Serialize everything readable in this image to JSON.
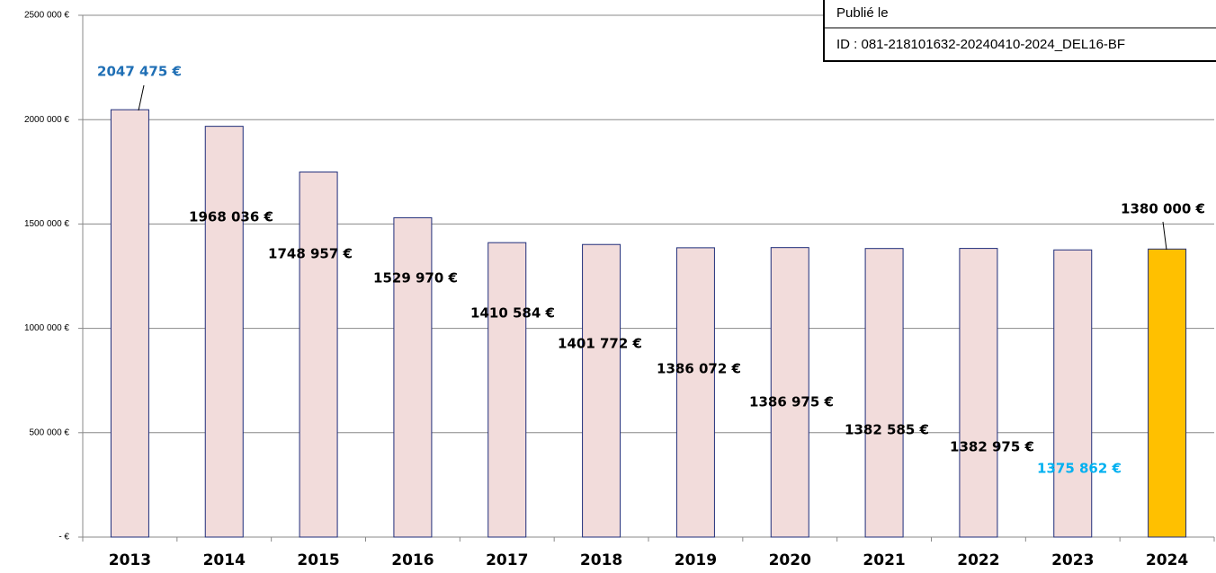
{
  "chart_data": {
    "type": "bar",
    "categories": [
      "2013",
      "2014",
      "2015",
      "2016",
      "2017",
      "2018",
      "2019",
      "2020",
      "2021",
      "2022",
      "2023",
      "2024"
    ],
    "values": [
      2047475,
      1968036,
      1748957,
      1529970,
      1410584,
      1401772,
      1386072,
      1386975,
      1382585,
      1382975,
      1375862,
      1380000
    ],
    "value_labels": [
      "2047 475 €",
      "1968 036 €",
      "1748 957 €",
      "1529 970 €",
      "1410 584 €",
      "1401 772 €",
      "1386 072 €",
      "1386 975 €",
      "1382 585 €",
      "1382 975 €",
      "1375 862 €",
      "1380 000 €"
    ],
    "colors": [
      "#f2dcdb",
      "#f2dcdb",
      "#f2dcdb",
      "#f2dcdb",
      "#f2dcdb",
      "#f2dcdb",
      "#f2dcdb",
      "#f2dcdb",
      "#f2dcdb",
      "#f2dcdb",
      "#f2dcdb",
      "#ffc000"
    ],
    "value_label_colors": [
      "#1f6fb5",
      "#000000",
      "#000000",
      "#000000",
      "#000000",
      "#000000",
      "#000000",
      "#000000",
      "#000000",
      "#000000",
      "#00b0f0",
      "#000000"
    ],
    "edge_color": "#1f2d7a",
    "ylim": [
      0,
      2500000
    ],
    "yticks": [
      {
        "value": 0,
        "label": "-  €"
      },
      {
        "value": 500000,
        "label": "500 000 €"
      },
      {
        "value": 1000000,
        "label": "1000 000 €"
      },
      {
        "value": 1500000,
        "label": "1500 000 €"
      },
      {
        "value": 2000000,
        "label": "2000 000 €"
      },
      {
        "value": 2500000,
        "label": "2500 000 €"
      }
    ],
    "grid": true
  },
  "stamp": {
    "published": "Publié le",
    "id": "ID : 081-218101632-20240410-2024_DEL16-BF"
  }
}
